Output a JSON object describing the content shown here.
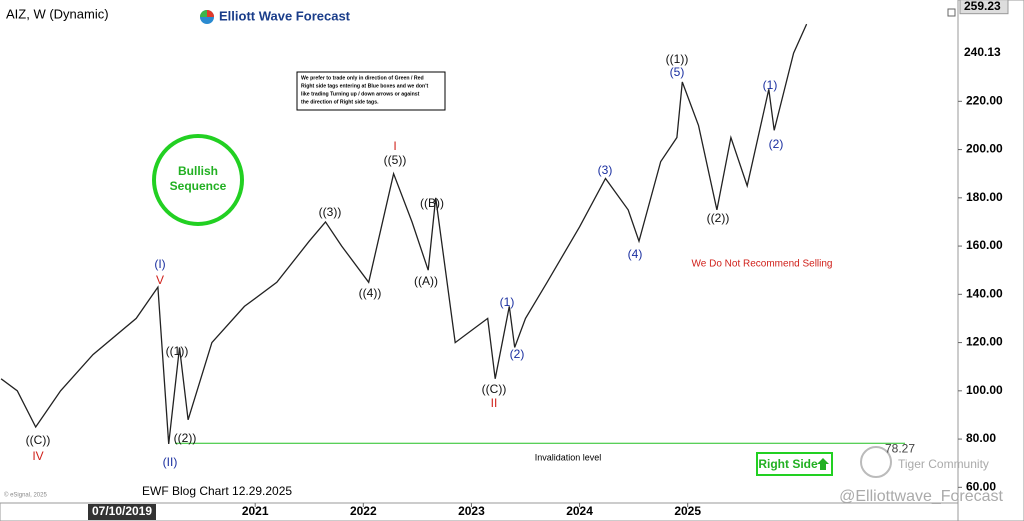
{
  "chart_data": {
    "type": "line",
    "title": "AIZ, W (Dynamic)",
    "brand": "Elliott Wave Forecast",
    "note": [
      "We prefer to trade only in direction of Green / Red",
      "Right side tags entering at Blue boxes and we don't",
      "like trading Turning up / down arrows or against",
      "the direction of Right side tags."
    ],
    "badge": [
      "Bullish",
      "Sequence"
    ],
    "warning": "We Do Not Recommend Selling",
    "invalidation": {
      "text": "Invalidation level",
      "value": 78.27,
      "label": "78.27"
    },
    "right_side": "Right Side",
    "footer": "EWF Blog Chart 12.29.2025",
    "cursor_date": "07/10/2019",
    "copyright": "© eSignal, 2025",
    "watermark": "Tiger Community",
    "handle": "@Elliottwave_Forecast",
    "series": [
      {
        "name": "AIZ",
        "color": "#222222",
        "x": [
          2018.65,
          2018.8,
          2018.97,
          2019.2,
          2019.5,
          2019.9,
          2020.1,
          2020.2,
          2020.3,
          2020.38,
          2020.6,
          2020.9,
          2021.2,
          2021.5,
          2021.65,
          2021.8,
          2022.05,
          2022.28,
          2022.45,
          2022.6,
          2022.67,
          2022.85,
          2023.0,
          2023.15,
          2023.22,
          2023.35,
          2023.4,
          2023.5,
          2023.7,
          2024.0,
          2024.24,
          2024.45,
          2024.55,
          2024.75,
          2024.9,
          2024.95,
          2025.1,
          2025.27,
          2025.4,
          2025.55,
          2025.75,
          2025.8,
          2025.98,
          2026.1
        ],
        "values": [
          105,
          100,
          85,
          100,
          115,
          130,
          143,
          78,
          118,
          88,
          120,
          135,
          145,
          162,
          170,
          160,
          145,
          190,
          170,
          150,
          180,
          120,
          125,
          130,
          105,
          135,
          118,
          130,
          145,
          168,
          188,
          175,
          162,
          195,
          205,
          228,
          210,
          175,
          205,
          185,
          225,
          208,
          240,
          252
        ]
      }
    ],
    "price_tags": [
      {
        "value": 259.23,
        "label": "259.23"
      },
      {
        "value": 240.13,
        "label": "240.13"
      }
    ],
    "xlim": [
      2018.64,
      2027.5
    ],
    "xticks": [
      2021,
      2022,
      2023,
      2024,
      2025
    ],
    "ylim": [
      53.5,
      262
    ],
    "yticks": [
      {
        "value": 60,
        "label": "60.00"
      },
      {
        "value": 80,
        "label": "80.00"
      },
      {
        "value": 100,
        "label": "100.00"
      },
      {
        "value": 120,
        "label": "120.00"
      },
      {
        "value": 140,
        "label": "140.00"
      },
      {
        "value": 160,
        "label": "160.00"
      },
      {
        "value": 180,
        "label": "180.00"
      },
      {
        "value": 200,
        "label": "200.00"
      },
      {
        "value": 220,
        "label": "220.00"
      }
    ],
    "annotations": [
      {
        "text": "(I)",
        "color": "#1a2fa0"
      },
      {
        "text": "V",
        "color": "#d0201a"
      },
      {
        "text": "((1))",
        "color": "#111111"
      },
      {
        "text": "((2))",
        "color": "#111111"
      },
      {
        "text": "(II)",
        "color": "#1a2fa0"
      },
      {
        "text": "((C))",
        "color": "#111111"
      },
      {
        "text": "IV",
        "color": "#d0201a"
      },
      {
        "text": "((3))",
        "color": "#111111"
      },
      {
        "text": "((4))",
        "color": "#111111"
      },
      {
        "text": "((5))",
        "color": "#111111"
      },
      {
        "text": "I",
        "color": "#d0201a"
      },
      {
        "text": "((B))",
        "color": "#111111"
      },
      {
        "text": "((A))",
        "color": "#111111"
      },
      {
        "text": "((C))",
        "color": "#111111"
      },
      {
        "text": "II",
        "color": "#d0201a"
      },
      {
        "text": "(1)",
        "color": "#1a2fa0"
      },
      {
        "text": "(2)",
        "color": "#1a2fa0"
      },
      {
        "text": "(3)",
        "color": "#1a2fa0"
      },
      {
        "text": "(4)",
        "color": "#1a2fa0"
      },
      {
        "text": "(5)",
        "color": "#1a2fa0"
      },
      {
        "text": "((1))",
        "color": "#111111"
      },
      {
        "text": "((2))",
        "color": "#111111"
      },
      {
        "text": "(1)",
        "color": "#1a2fa0"
      },
      {
        "text": "(2)",
        "color": "#1a2fa0"
      }
    ]
  }
}
